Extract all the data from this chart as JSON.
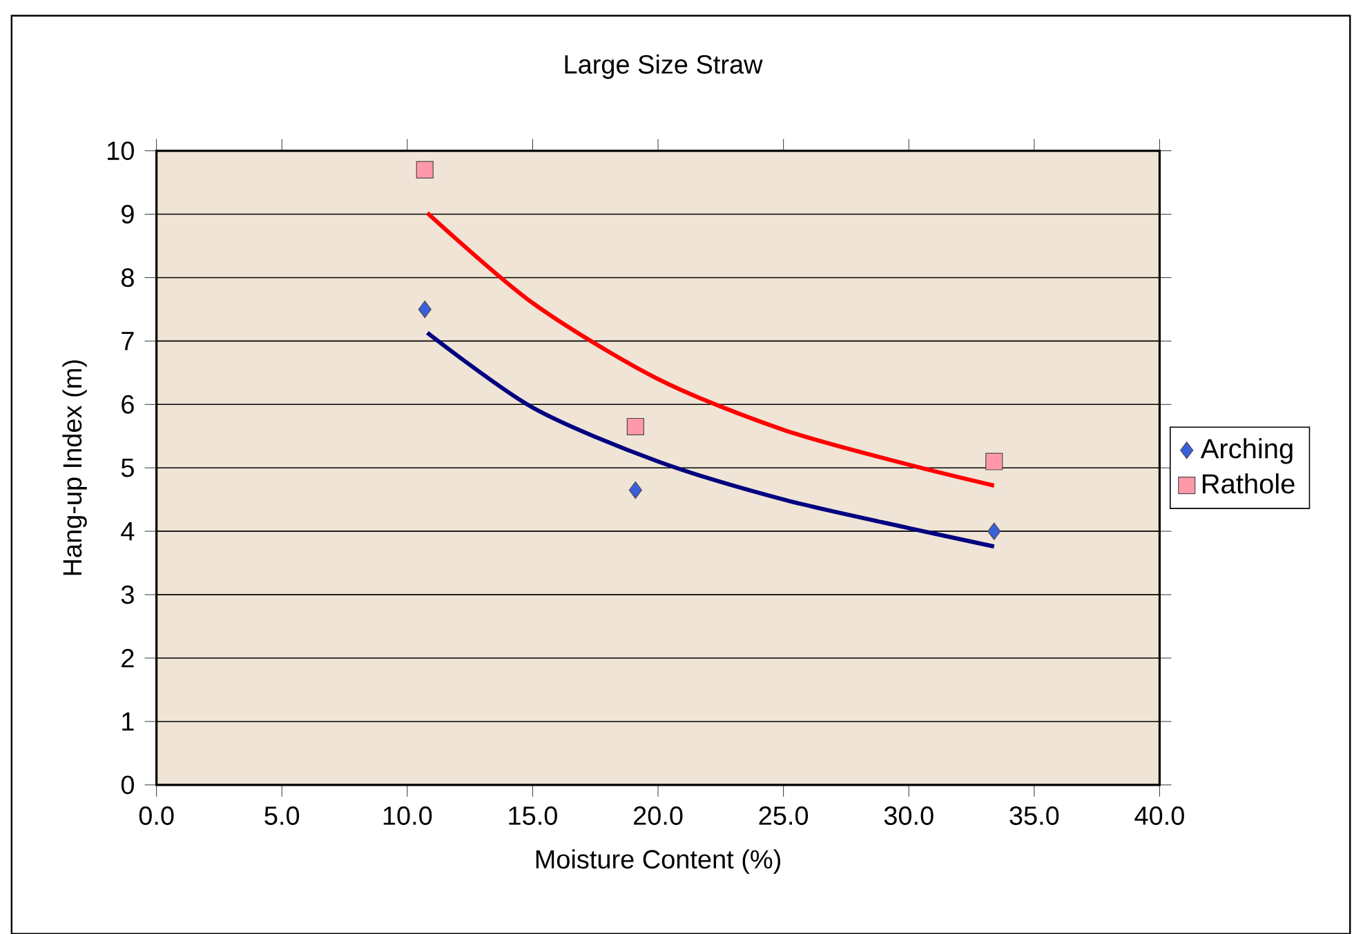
{
  "chart_data": {
    "type": "scatter",
    "title": "Large Size Straw",
    "xlabel": "Moisture Content (%)",
    "ylabel": "Hang-up Index (m)",
    "xlim": [
      0,
      40
    ],
    "ylim": [
      0,
      10
    ],
    "xticks": [
      {
        "value": 0,
        "label": "0.0"
      },
      {
        "value": 5,
        "label": "5.0"
      },
      {
        "value": 10,
        "label": "10.0"
      },
      {
        "value": 15,
        "label": "15.0"
      },
      {
        "value": 20,
        "label": "20.0"
      },
      {
        "value": 25,
        "label": "25.0"
      },
      {
        "value": 30,
        "label": "30.0"
      },
      {
        "value": 35,
        "label": "35.0"
      },
      {
        "value": 40,
        "label": "40.0"
      }
    ],
    "yticks": [
      0,
      1,
      2,
      3,
      4,
      5,
      6,
      7,
      8,
      9,
      10
    ],
    "grid": "y",
    "legend": "right",
    "series": [
      {
        "name": "Arching",
        "marker": "diamond",
        "color": "#3a5fdc",
        "x": [
          10.7,
          19.1,
          33.4
        ],
        "values": [
          7.5,
          4.65,
          4.0
        ]
      },
      {
        "name": "Rathole",
        "marker": "square",
        "color": "#ff99aa",
        "x": [
          10.7,
          19.1,
          33.4
        ],
        "values": [
          9.7,
          5.65,
          5.1
        ]
      },
      {
        "type": "line",
        "marker": "none",
        "color": "#000080",
        "x": [
          10.8,
          15,
          20,
          25,
          30,
          33.4
        ],
        "values": [
          7.13,
          5.95,
          5.1,
          4.5,
          4.05,
          3.76
        ]
      },
      {
        "type": "line",
        "marker": "none",
        "color": "#ff0000",
        "x": [
          10.8,
          15,
          20,
          25,
          30,
          33.4
        ],
        "values": [
          9.02,
          7.6,
          6.4,
          5.6,
          5.05,
          4.72
        ]
      }
    ]
  }
}
